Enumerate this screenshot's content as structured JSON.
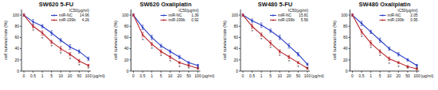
{
  "chart_data": [
    {
      "type": "line",
      "title": "SW620 5-FU",
      "x_label": "(μg/ml)",
      "y_label": "cell survival rate (%)",
      "categories": [
        "0",
        "0.5",
        "1",
        "5",
        "10",
        "20",
        "50",
        "100"
      ],
      "ylim": [
        0,
        110
      ],
      "yticks": [
        0,
        20,
        40,
        60,
        80,
        100
      ],
      "legend": "upper right",
      "legend_title": "IC50(μg/ml)",
      "series": [
        {
          "name": "miR-NC",
          "color": "#2b3fc4",
          "marker": "circle",
          "ic50": 14.96,
          "values": [
            100,
            88,
            80,
            68,
            55,
            43,
            35,
            22
          ],
          "errors": [
            2,
            4,
            3,
            4,
            3,
            4,
            3,
            3
          ]
        },
        {
          "name": "miR-199b",
          "color": "#b8282e",
          "marker": "circle",
          "ic50": 4.26,
          "values": [
            100,
            80,
            68,
            52,
            40,
            30,
            18,
            10
          ],
          "errors": [
            2,
            3,
            4,
            3,
            4,
            3,
            3,
            2
          ]
        }
      ],
      "significance": [
        null,
        "*",
        "*",
        "*",
        "*",
        "*",
        "*",
        "*"
      ]
    },
    {
      "type": "line",
      "title": "SW620 Oxaliplatin",
      "x_label": "(μg/ml)",
      "y_label": "cell survival rate (%)",
      "categories": [
        "0",
        "0.5",
        "1",
        "5",
        "10",
        "20",
        "50",
        "100"
      ],
      "ylim": [
        0,
        110
      ],
      "yticks": [
        0,
        20,
        40,
        60,
        80,
        100
      ],
      "legend": "upper right",
      "legend_title": "IC50(μg/ml)",
      "series": [
        {
          "name": "miR-NC",
          "color": "#2b3fc4",
          "marker": "circle",
          "ic50": 1.39,
          "values": [
            100,
            78,
            60,
            45,
            35,
            25,
            15,
            10
          ],
          "errors": [
            2,
            4,
            4,
            3,
            3,
            3,
            2,
            2
          ]
        },
        {
          "name": "miR-199b",
          "color": "#b8282e",
          "marker": "circle",
          "ic50": 0.92,
          "values": [
            100,
            65,
            48,
            35,
            25,
            15,
            10,
            5
          ],
          "errors": [
            2,
            4,
            3,
            3,
            3,
            2,
            2,
            2
          ]
        }
      ],
      "significance": [
        null,
        "*",
        "*",
        "*",
        "*",
        "*",
        "*",
        "*"
      ]
    },
    {
      "type": "line",
      "title": "SW480 5-FU",
      "x_label": "(μg/ml)",
      "y_label": "cell survival rate (%)",
      "categories": [
        "0",
        "0.5",
        "1",
        "5",
        "10",
        "20",
        "50",
        "100"
      ],
      "ylim": [
        0,
        110
      ],
      "yticks": [
        0,
        20,
        40,
        60,
        80,
        100
      ],
      "legend": "upper right",
      "legend_title": "IC50(μg/ml)",
      "series": [
        {
          "name": "miR-NC",
          "color": "#2b3fc4",
          "marker": "circle",
          "ic50": 15.81,
          "values": [
            100,
            90,
            82,
            72,
            60,
            45,
            30,
            12
          ],
          "errors": [
            2,
            3,
            4,
            3,
            4,
            4,
            3,
            2
          ]
        },
        {
          "name": "miR-199b",
          "color": "#b8282e",
          "marker": "circle",
          "ic50": 5.56,
          "values": [
            100,
            80,
            65,
            50,
            35,
            25,
            15,
            5
          ],
          "errors": [
            2,
            4,
            3,
            4,
            3,
            3,
            2,
            2
          ]
        }
      ],
      "significance": [
        null,
        "*",
        "*",
        "*",
        "*",
        "*",
        "*",
        "*"
      ]
    },
    {
      "type": "line",
      "title": "SW480 Oxaliplatin",
      "x_label": "(μg/ml)",
      "y_label": "cell survival rate (%)",
      "categories": [
        "0",
        "0.5",
        "1",
        "5",
        "10",
        "20",
        "50",
        "100"
      ],
      "ylim": [
        0,
        110
      ],
      "yticks": [
        0,
        20,
        40,
        60,
        80,
        100
      ],
      "legend": "upper right",
      "legend_title": "IC50(μg/ml)",
      "series": [
        {
          "name": "miR-NC",
          "color": "#2b3fc4",
          "marker": "circle",
          "ic50": 2.05,
          "values": [
            100,
            85,
            70,
            55,
            40,
            30,
            20,
            10
          ],
          "errors": [
            2,
            4,
            3,
            4,
            3,
            3,
            2,
            2
          ]
        },
        {
          "name": "miR-199b",
          "color": "#b8282e",
          "marker": "circle",
          "ic50": 0.95,
          "values": [
            100,
            70,
            50,
            35,
            22,
            15,
            8,
            4
          ],
          "errors": [
            2,
            4,
            4,
            3,
            3,
            2,
            2,
            2
          ]
        }
      ],
      "significance": [
        null,
        "*",
        "*",
        "*",
        "*",
        "*",
        "*",
        "*"
      ]
    }
  ]
}
